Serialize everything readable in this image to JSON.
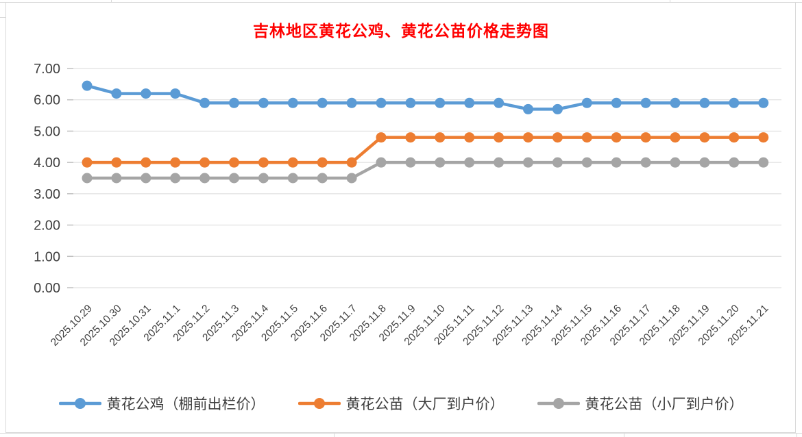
{
  "chart_data": {
    "type": "line",
    "title": "吉林地区黄花公鸡、黄花公苗价格走势图",
    "title_color": "#FF0000",
    "categories": [
      "2025.10.29",
      "2025.10.30",
      "2025.10.31",
      "2025.11.1",
      "2025.11.2",
      "2025.11.3",
      "2025.11.4",
      "2025.11.5",
      "2025.11.6",
      "2025.11.7",
      "2025.11.8",
      "2025.11.9",
      "2025.11.10",
      "2025.11.11",
      "2025.11.12",
      "2025.11.13",
      "2025.11.14",
      "2025.11.15",
      "2025.11.16",
      "2025.11.17",
      "2025.11.18",
      "2025.11.19",
      "2025.11.20",
      "2025.11.21"
    ],
    "series": [
      {
        "name": "黄花公鸡（棚前出栏价）",
        "color": "#5B9BD5",
        "values": [
          6.45,
          6.2,
          6.2,
          6.2,
          5.9,
          5.9,
          5.9,
          5.9,
          5.9,
          5.9,
          5.9,
          5.9,
          5.9,
          5.9,
          5.9,
          5.7,
          5.7,
          5.9,
          5.9,
          5.9,
          5.9,
          5.9,
          5.9,
          5.9
        ]
      },
      {
        "name": "黄花公苗（大厂到户价）",
        "color": "#ED7D31",
        "values": [
          4.0,
          4.0,
          4.0,
          4.0,
          4.0,
          4.0,
          4.0,
          4.0,
          4.0,
          4.0,
          4.8,
          4.8,
          4.8,
          4.8,
          4.8,
          4.8,
          4.8,
          4.8,
          4.8,
          4.8,
          4.8,
          4.8,
          4.8,
          4.8
        ]
      },
      {
        "name": "黄花公苗（小厂到户价）",
        "color": "#A5A5A5",
        "values": [
          3.5,
          3.5,
          3.5,
          3.5,
          3.5,
          3.5,
          3.5,
          3.5,
          3.5,
          3.5,
          4.0,
          4.0,
          4.0,
          4.0,
          4.0,
          4.0,
          4.0,
          4.0,
          4.0,
          4.0,
          4.0,
          4.0,
          4.0,
          4.0
        ]
      }
    ],
    "y_axis": {
      "min": 0,
      "max": 7,
      "step": 1,
      "tick_labels": [
        "0.00",
        "1.00",
        "2.00",
        "3.00",
        "4.00",
        "5.00",
        "6.00",
        "7.00"
      ]
    },
    "grid": "horizontal-only",
    "gridline_color": "#d9d9d9",
    "axis_text_color": "#404040",
    "legend_position": "bottom"
  }
}
